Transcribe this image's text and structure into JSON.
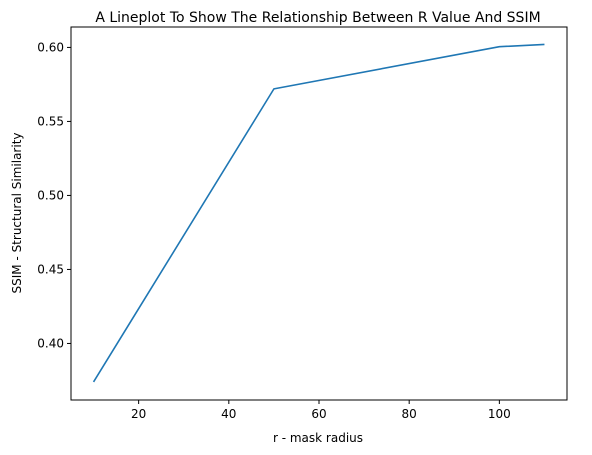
{
  "chart_data": {
    "type": "line",
    "title": "A Lineplot To Show The Relationship Between R Value And SSIM",
    "xlabel": "r - mask radius",
    "ylabel": "SSIM - Structural Similarity",
    "xlim": [
      5,
      115
    ],
    "ylim": [
      0.3618,
      0.6138
    ],
    "x_ticks": [
      20,
      40,
      60,
      80,
      100
    ],
    "x_tick_labels": [
      "20",
      "40",
      "60",
      "80",
      "100"
    ],
    "y_ticks": [
      0.4,
      0.45,
      0.5,
      0.55,
      0.6
    ],
    "y_tick_labels": [
      "0.40",
      "0.45",
      "0.50",
      "0.55",
      "0.60"
    ],
    "grid": false,
    "legend": "none",
    "series": [
      {
        "color": "#1f77b4",
        "x": [
          10,
          50,
          100,
          110
        ],
        "y": [
          0.374,
          0.572,
          0.6005,
          0.602
        ]
      }
    ]
  }
}
